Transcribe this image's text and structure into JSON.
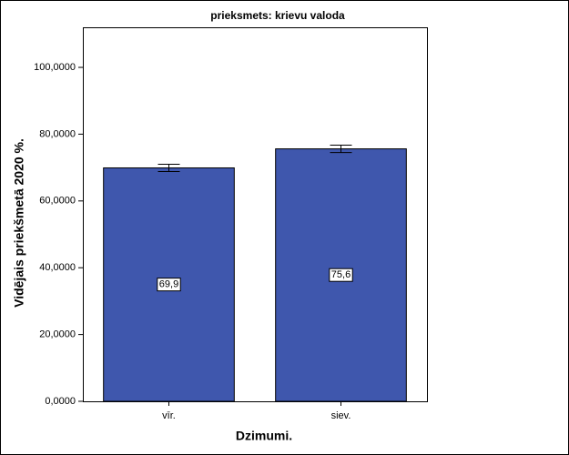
{
  "chart_data": {
    "type": "bar",
    "title": "prieksmets: krievu valoda",
    "x_label": "Dzimumi.",
    "y_label": "Vidējais priekšmetā 2020 %.",
    "categories": [
      "vīr.",
      "siev."
    ],
    "values": [
      69.9,
      75.6
    ],
    "value_labels": [
      "69,9",
      "75,6"
    ],
    "errors": [
      1.1,
      1.1
    ],
    "color": "#3f57ad",
    "ylim": [
      0,
      112
    ],
    "yticks": [
      {
        "value": 0,
        "label": "0,0000"
      },
      {
        "value": 20,
        "label": "20,0000"
      },
      {
        "value": 40,
        "label": "40,0000"
      },
      {
        "value": 60,
        "label": "60,0000"
      },
      {
        "value": 80,
        "label": "80,0000"
      },
      {
        "value": 100,
        "label": "100,0000"
      }
    ]
  }
}
